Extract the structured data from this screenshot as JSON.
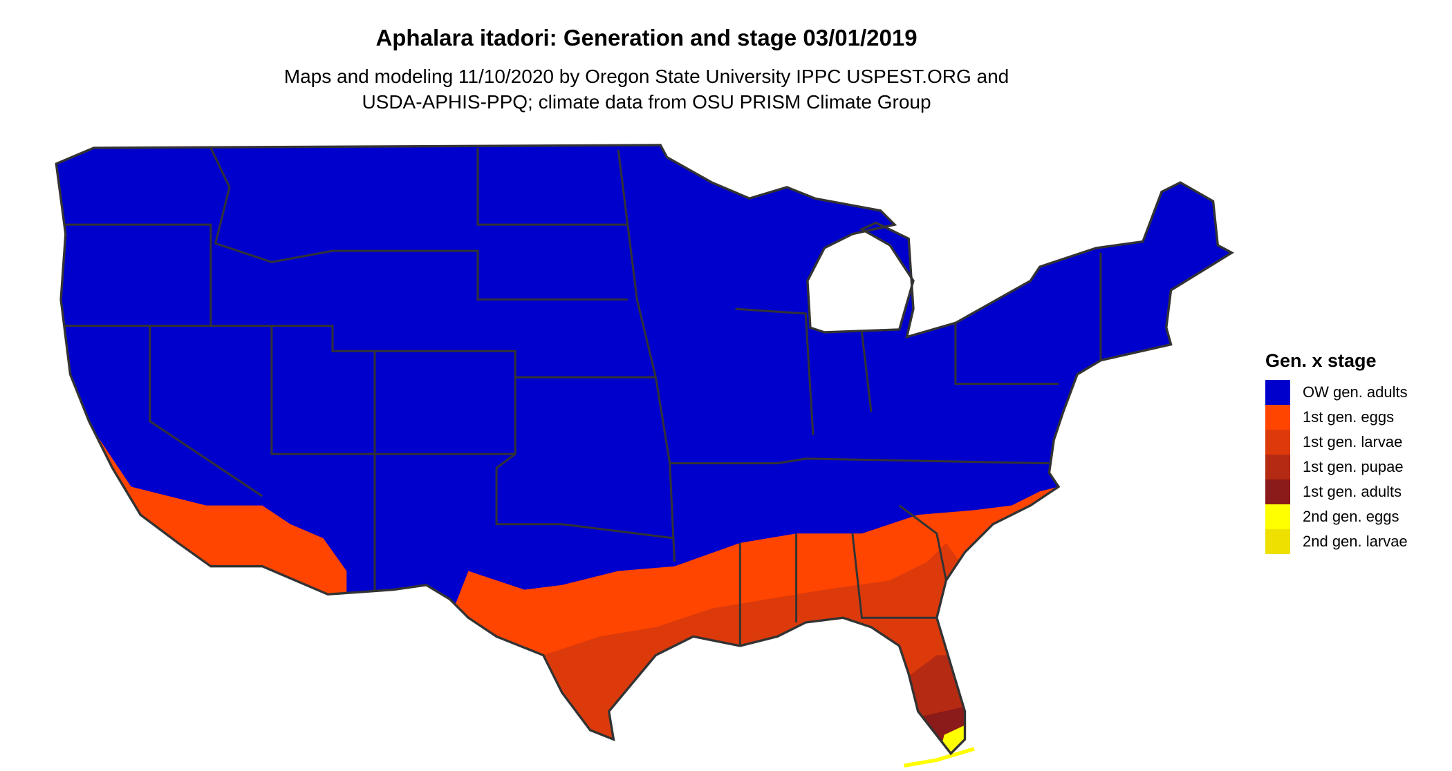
{
  "title": "Aphalara itadori: Generation and stage 03/01/2019",
  "subtitle_lines": [
    "Maps and modeling 11/10/2020 by Oregon State University IPPC USPEST.ORG and",
    "USDA-APHIS-PPQ; climate data from OSU PRISM Climate Group"
  ],
  "legend": {
    "title": "Gen. x stage",
    "items": [
      {
        "label": "OW gen. adults",
        "color": "#0000CD"
      },
      {
        "label": "1st gen. eggs",
        "color": "#FF4500"
      },
      {
        "label": "1st gen. larvae",
        "color": "#DD3A0C"
      },
      {
        "label": "1st gen. pupae",
        "color": "#B52A12"
      },
      {
        "label": "1st gen. adults",
        "color": "#8B1A1A"
      },
      {
        "label": "2nd gen. eggs",
        "color": "#FFFF00"
      },
      {
        "label": "2nd gen. larvae",
        "color": "#EEE000"
      }
    ]
  },
  "chart_data": {
    "type": "heatmap",
    "title": "Aphalara itadori: Generation and stage 03/01/2019",
    "region": "Contiguous United States",
    "categories": [
      "OW gen. adults",
      "1st gen. eggs",
      "1st gen. larvae",
      "1st gen. pupae",
      "1st gen. adults",
      "2nd gen. eggs",
      "2nd gen. larvae"
    ],
    "border_color": "#333333"
  }
}
